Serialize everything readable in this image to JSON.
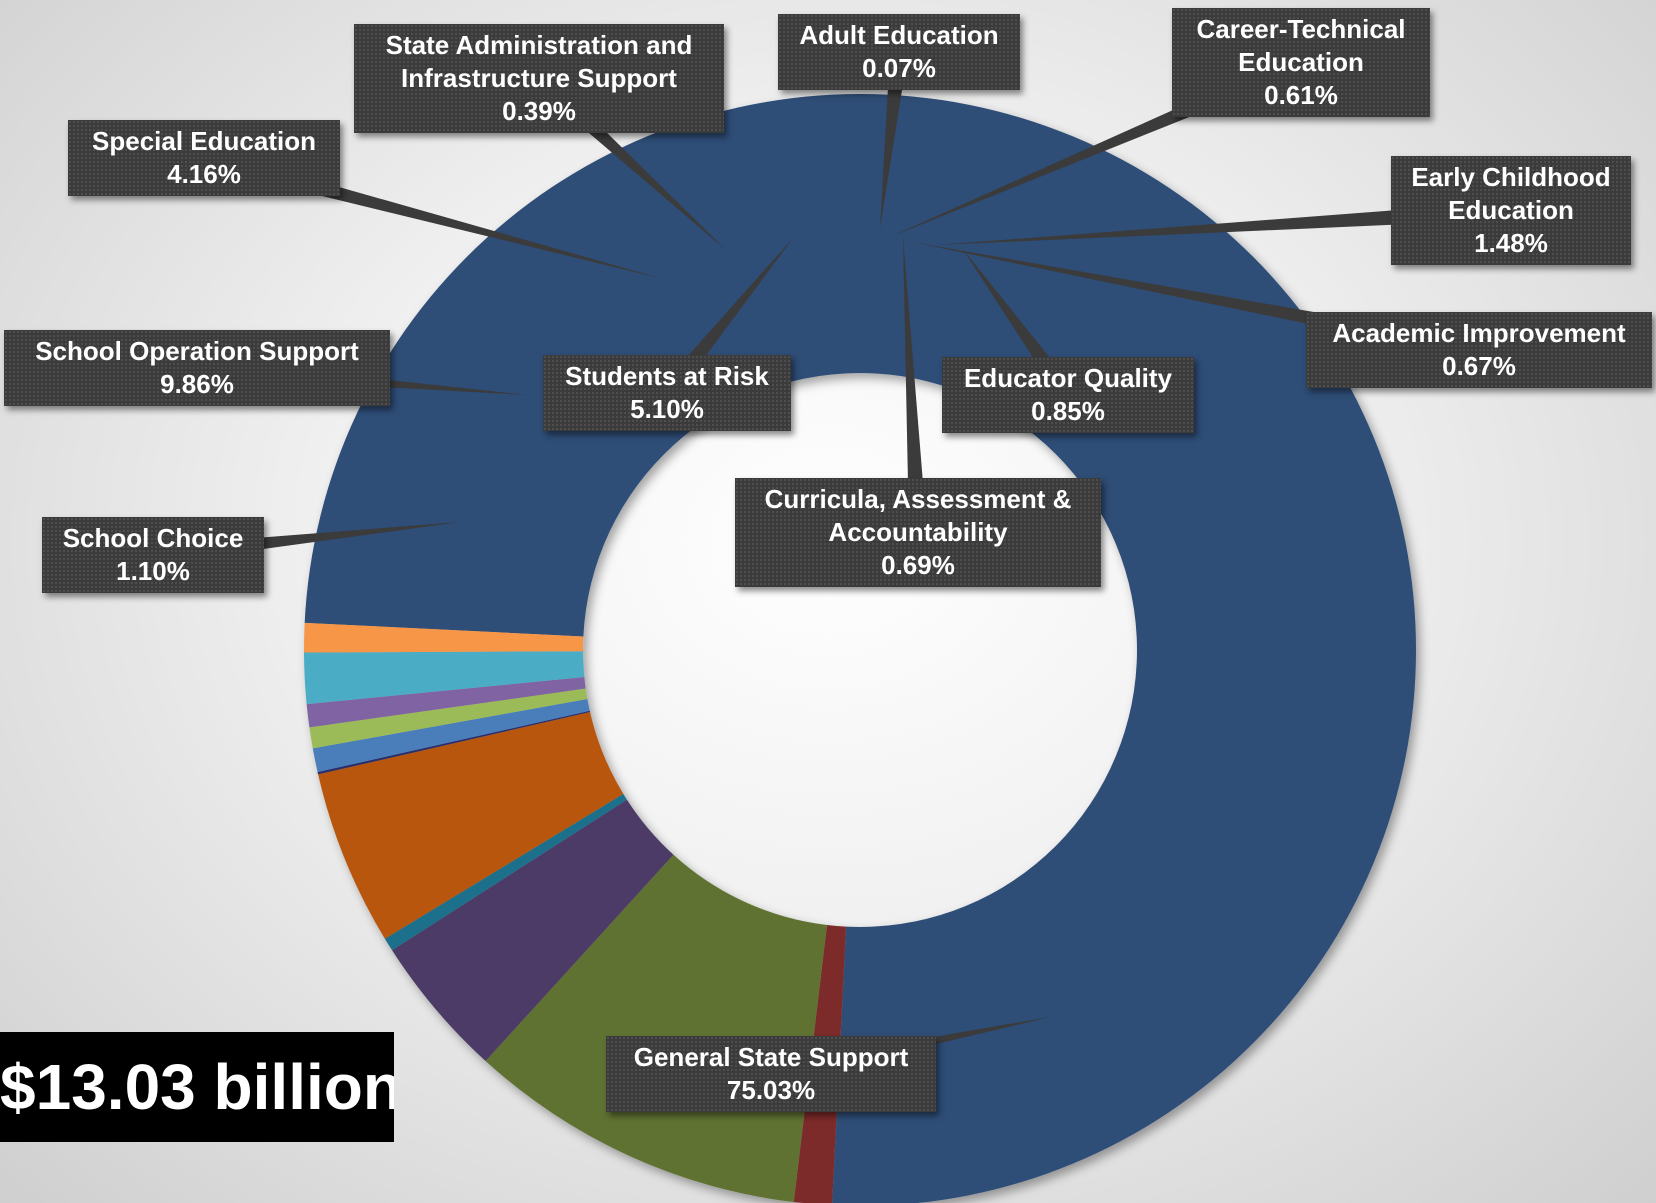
{
  "total_label": "$13.03 billion",
  "chart_data": {
    "type": "pie",
    "variant": "doughnut",
    "title": "",
    "unit": "%",
    "slices": [
      {
        "name": "General State Support",
        "value": 75.03,
        "label": "75.03%",
        "color": "#2e4d77"
      },
      {
        "name": "School Choice",
        "value": 1.1,
        "label": "1.10%",
        "color": "#7b2c2c"
      },
      {
        "name": "School Operation Support",
        "value": 9.86,
        "label": "9.86%",
        "color": "#5f7230"
      },
      {
        "name": "Special Education",
        "value": 4.16,
        "label": "4.16%",
        "color": "#4b3b66"
      },
      {
        "name": "State Administration and Infrastructure Support",
        "value": 0.39,
        "label": "0.39%",
        "color": "#1f6f8b"
      },
      {
        "name": "Students at Risk",
        "value": 5.1,
        "label": "5.10%",
        "color": "#b8560f"
      },
      {
        "name": "Adult Education",
        "value": 0.07,
        "label": "0.07%",
        "color": "#2c2f6b"
      },
      {
        "name": "Curricula, Assessment & Accountability",
        "value": 0.69,
        "label": "0.69%",
        "color": "#4a7ebb"
      },
      {
        "name": "Career-Technical Education",
        "value": 0.61,
        "label": "0.61%",
        "color": "#9bbb59"
      },
      {
        "name": "Academic Improvement",
        "value": 0.67,
        "label": "0.67%",
        "color": "#8064a2"
      },
      {
        "name": "Early Childhood Education",
        "value": 1.48,
        "label": "1.48%",
        "color": "#4bacc6"
      },
      {
        "name": "Educator Quality",
        "value": 0.85,
        "label": "0.85%",
        "color": "#f79646"
      }
    ]
  }
}
